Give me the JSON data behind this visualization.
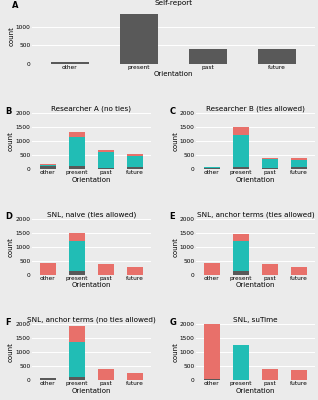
{
  "panels": [
    {
      "label": "A",
      "title": "Self-report",
      "categories": [
        "other",
        "present",
        "past",
        "future"
      ],
      "stacked": false,
      "values": [
        [
          50,
          1350,
          400,
          400
        ]
      ],
      "colors": [
        "#595959"
      ],
      "ylim": [
        0,
        1500
      ],
      "yticks": [
        0,
        500,
        1000
      ]
    },
    {
      "label": "B",
      "title": "Researcher A (no ties)",
      "categories": [
        "other",
        "present",
        "past",
        "future"
      ],
      "stacked": true,
      "values": [
        [
          120,
          100,
          50,
          90
        ],
        [
          30,
          1050,
          570,
          370
        ],
        [
          20,
          170,
          80,
          80
        ]
      ],
      "colors": [
        "#595959",
        "#21BDB5",
        "#E8706A"
      ],
      "ylim": [
        0,
        2000
      ],
      "yticks": [
        0,
        500,
        1000,
        1500,
        2000
      ]
    },
    {
      "label": "C",
      "title": "Researcher B (ties allowed)",
      "categories": [
        "other",
        "present",
        "past",
        "future"
      ],
      "stacked": true,
      "values": [
        [
          40,
          80,
          40,
          60
        ],
        [
          20,
          1130,
          310,
          280
        ],
        [
          10,
          290,
          50,
          50
        ]
      ],
      "colors": [
        "#595959",
        "#21BDB5",
        "#E8706A"
      ],
      "ylim": [
        0,
        2000
      ],
      "yticks": [
        0,
        500,
        1000,
        1500,
        2000
      ]
    },
    {
      "label": "D",
      "title": "SNL, naive (ties allowed)",
      "categories": [
        "other",
        "present",
        "past",
        "future"
      ],
      "stacked": true,
      "values": [
        [
          0,
          110,
          0,
          0
        ],
        [
          0,
          1100,
          0,
          0
        ],
        [
          400,
          280,
          380,
          270
        ]
      ],
      "colors": [
        "#595959",
        "#21BDB5",
        "#E8706A"
      ],
      "ylim": [
        0,
        2000
      ],
      "yticks": [
        0,
        500,
        1000,
        1500,
        2000
      ]
    },
    {
      "label": "E",
      "title": "SNL, anchor terms (ties allowed)",
      "categories": [
        "other",
        "present",
        "past",
        "future"
      ],
      "stacked": true,
      "values": [
        [
          0,
          110,
          0,
          0
        ],
        [
          0,
          1100,
          0,
          0
        ],
        [
          400,
          250,
          380,
          270
        ]
      ],
      "colors": [
        "#595959",
        "#21BDB5",
        "#E8706A"
      ],
      "ylim": [
        0,
        2000
      ],
      "yticks": [
        0,
        500,
        1000,
        1500,
        2000
      ]
    },
    {
      "label": "F",
      "title": "SNL, anchor terms (no ties allowed)",
      "categories": [
        "other",
        "present",
        "past",
        "future"
      ],
      "stacked": true,
      "values": [
        [
          70,
          110,
          0,
          0
        ],
        [
          0,
          1250,
          0,
          0
        ],
        [
          0,
          580,
          380,
          270
        ]
      ],
      "colors": [
        "#595959",
        "#21BDB5",
        "#E8706A"
      ],
      "ylim": [
        0,
        2000
      ],
      "yticks": [
        0,
        500,
        1000,
        1500,
        2000
      ]
    },
    {
      "label": "G",
      "title": "SNL, suTime",
      "categories": [
        "other",
        "present",
        "past",
        "future"
      ],
      "stacked": true,
      "values": [
        [
          40,
          0,
          0,
          0
        ],
        [
          0,
          1270,
          0,
          0
        ],
        [
          2000,
          0,
          380,
          350
        ]
      ],
      "colors": [
        "#595959",
        "#21BDB5",
        "#E8706A"
      ],
      "ylim": [
        0,
        2000
      ],
      "yticks": [
        0,
        500,
        1000,
        1500,
        2000
      ]
    }
  ],
  "bg_color": "#EBEBEB",
  "grid_color": "#FFFFFF",
  "bar_width": 0.55,
  "xlabel": "Orientation",
  "ylabel": "count",
  "label_fontsize": 5.0,
  "tick_fontsize": 4.2,
  "title_fontsize": 5.2
}
